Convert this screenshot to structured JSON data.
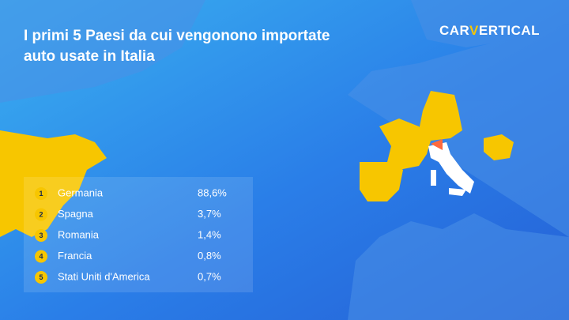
{
  "header": {
    "title_lines": [
      "I primi 5 Paesi da cui vengonono importate",
      "auto usate in Italia"
    ],
    "logo": [
      "CAR",
      "V",
      "ERTICAL"
    ]
  },
  "table": {
    "rows": [
      [
        "1",
        "Germania",
        "88,6%"
      ],
      [
        "2",
        "Spagna",
        "3,7%"
      ],
      [
        "3",
        "Romania",
        "1,4%"
      ],
      [
        "4",
        "Francia",
        "0,8%"
      ],
      [
        "5",
        "Stati Uniti d'America",
        "0,7%"
      ]
    ]
  }
}
